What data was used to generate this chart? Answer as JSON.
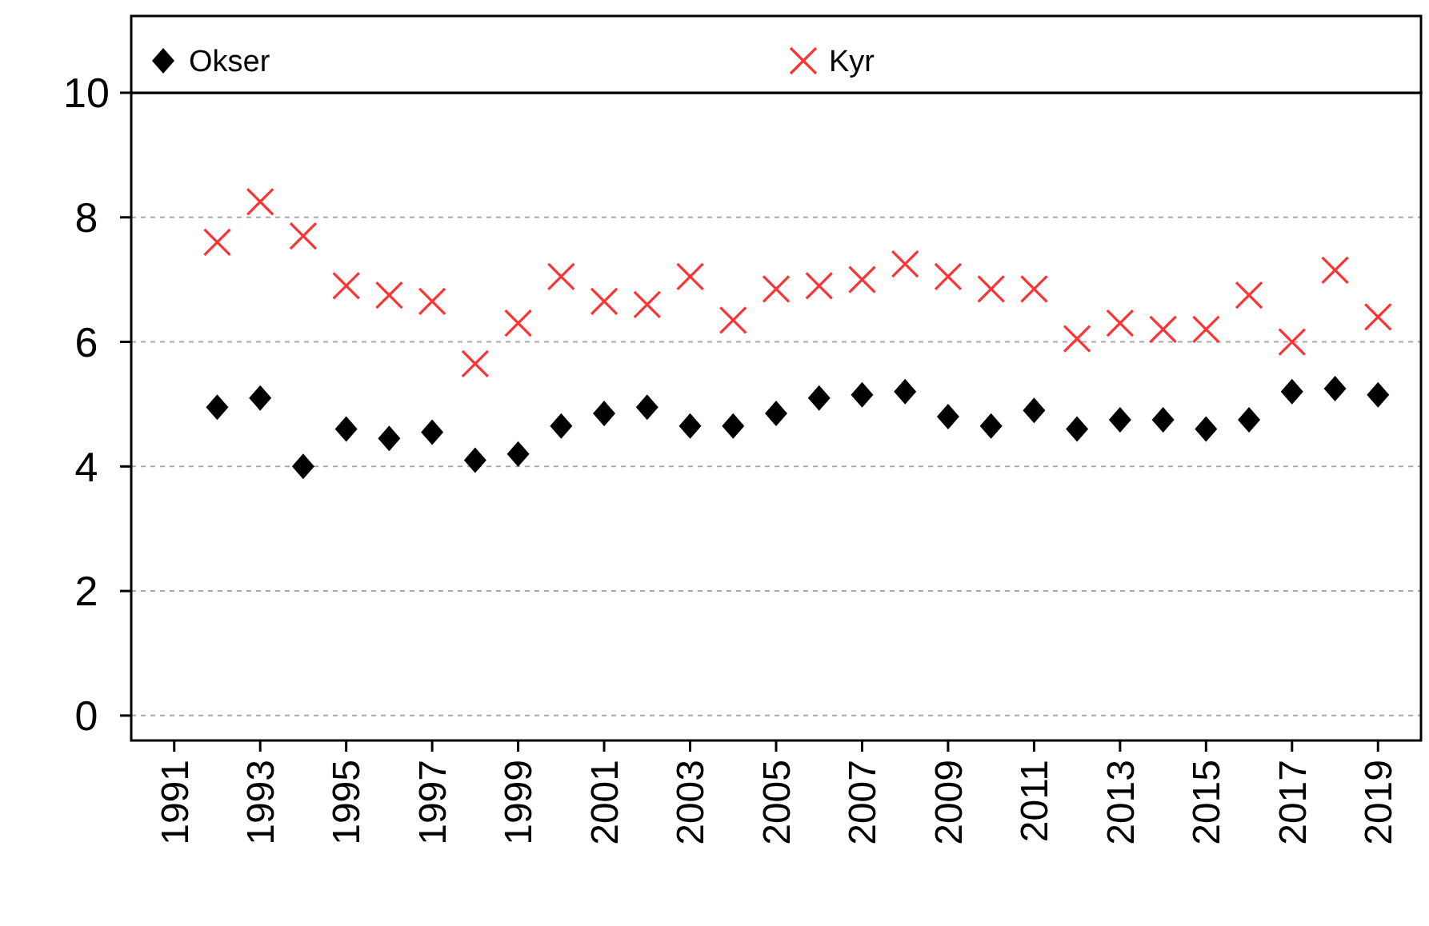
{
  "chart_data": {
    "type": "scatter",
    "x": [
      1992,
      1993,
      1994,
      1995,
      1996,
      1997,
      1998,
      1999,
      2000,
      2001,
      2002,
      2003,
      2004,
      2005,
      2006,
      2007,
      2008,
      2009,
      2010,
      2011,
      2012,
      2013,
      2014,
      2015,
      2016,
      2017,
      2018,
      2019
    ],
    "series": [
      {
        "name": "Okser",
        "color": "#000000",
        "marker": "diamond",
        "values": [
          4.95,
          5.1,
          4.0,
          4.6,
          4.45,
          4.55,
          4.1,
          4.2,
          4.65,
          4.85,
          4.95,
          4.65,
          4.65,
          4.85,
          5.1,
          5.15,
          5.2,
          4.8,
          4.65,
          4.9,
          4.6,
          4.75,
          4.75,
          4.6,
          4.75,
          5.2,
          5.25,
          5.15
        ]
      },
      {
        "name": "Kyr",
        "color": "#ff3333",
        "marker": "cross",
        "values": [
          7.6,
          8.25,
          7.7,
          6.9,
          6.75,
          6.65,
          5.65,
          6.3,
          7.05,
          6.65,
          6.6,
          7.05,
          6.35,
          6.85,
          6.9,
          7.0,
          7.25,
          7.05,
          6.85,
          6.85,
          6.05,
          6.3,
          6.2,
          6.2,
          6.75,
          6.0,
          7.15,
          6.4
        ]
      }
    ],
    "xlim": [
      1990,
      2020
    ],
    "xticks": [
      1991,
      1993,
      1995,
      1997,
      1999,
      2001,
      2003,
      2005,
      2007,
      2009,
      2011,
      2013,
      2015,
      2017,
      2019
    ],
    "ylim": [
      -0.4,
      10
    ],
    "yticks": [
      0,
      2,
      4,
      6,
      8,
      10
    ],
    "grid": "y",
    "legend": "top"
  }
}
